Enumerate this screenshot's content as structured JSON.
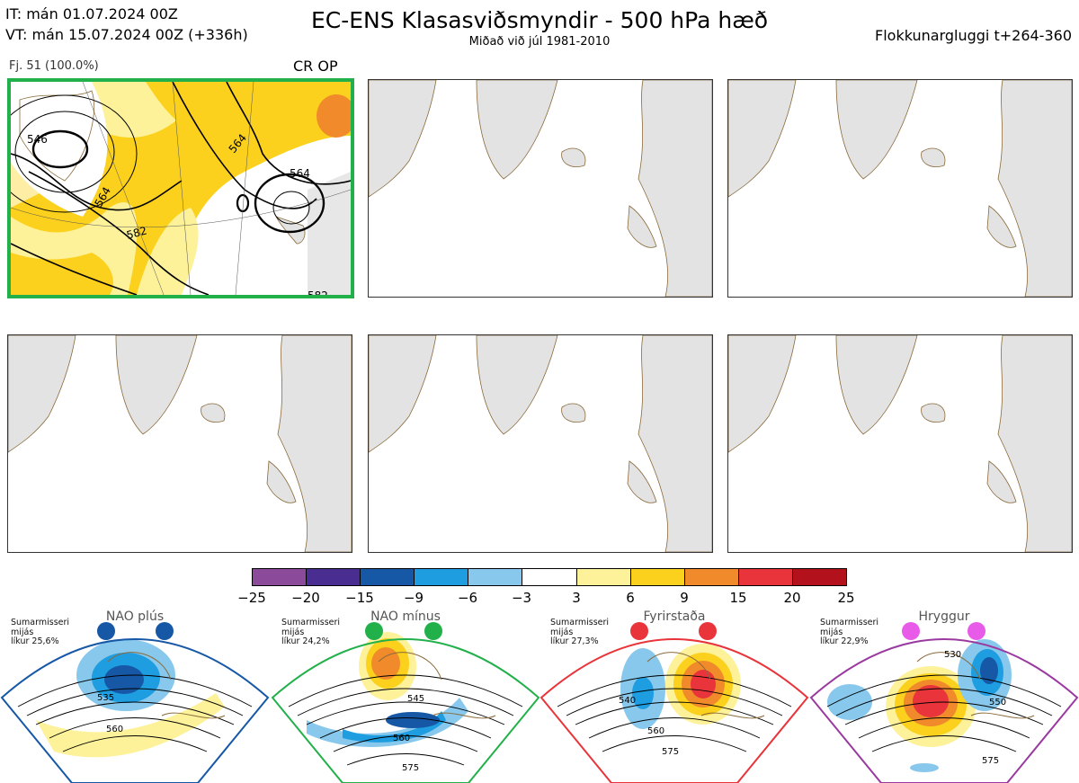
{
  "header": {
    "init_line": "IT: mán 01.07.2024 00Z",
    "valid_line": "VT: mán 15.07.2024 00Z  (+336h)",
    "title": "EC-ENS Klasasviðsmyndir - 500 hPa hæð",
    "subtitle": "Miðað við júl 1981-2010",
    "window": "Flokkunargluggi t+264-360"
  },
  "cluster": {
    "members_label": "Fj. 51 (100.0%)",
    "tag": "CR OP",
    "contour_labels": [
      "546",
      "564",
      "582",
      "564",
      "564",
      "582"
    ]
  },
  "colors": {
    "active_border": "#22b04a",
    "land": "#e3e3e3",
    "coast": "#8a6a3a",
    "anomaly": [
      "#8b4a9a",
      "#4a2d90",
      "#1658a6",
      "#1e9de0",
      "#87c8ec",
      "#ffffff",
      "#fdf29a",
      "#fbd11e",
      "#f08a2a",
      "#e8343a",
      "#b3121d"
    ]
  },
  "colorbar": {
    "ticks": [
      "−25",
      "−20",
      "−15",
      "−9",
      "−6",
      "−3",
      "3",
      "6",
      "9",
      "15",
      "20",
      "25"
    ]
  },
  "regimes": [
    {
      "name": "NAO plús",
      "season": "Sumarmisseri",
      "stat": "mijás",
      "prob": "líkur 25,6%",
      "color": "#1658a6",
      "labels": [
        "535",
        "560"
      ]
    },
    {
      "name": "NAO mínus",
      "season": "Sumarmisseri",
      "stat": "mijás",
      "prob": "líkur 24,2%",
      "color": "#22b04a",
      "labels": [
        "545",
        "560",
        "575"
      ]
    },
    {
      "name": "Fyrirstaða",
      "season": "Sumarmisseri",
      "stat": "mijás",
      "prob": "líkur 27,3%",
      "color": "#e8343a",
      "labels": [
        "540",
        "560",
        "575"
      ]
    },
    {
      "name": "Hryggur",
      "season": "Sumarmisseri",
      "stat": "mijás",
      "prob": "líkur 22,9%",
      "color": "#9a3aa0",
      "labels": [
        "530",
        "550",
        "575"
      ]
    }
  ]
}
